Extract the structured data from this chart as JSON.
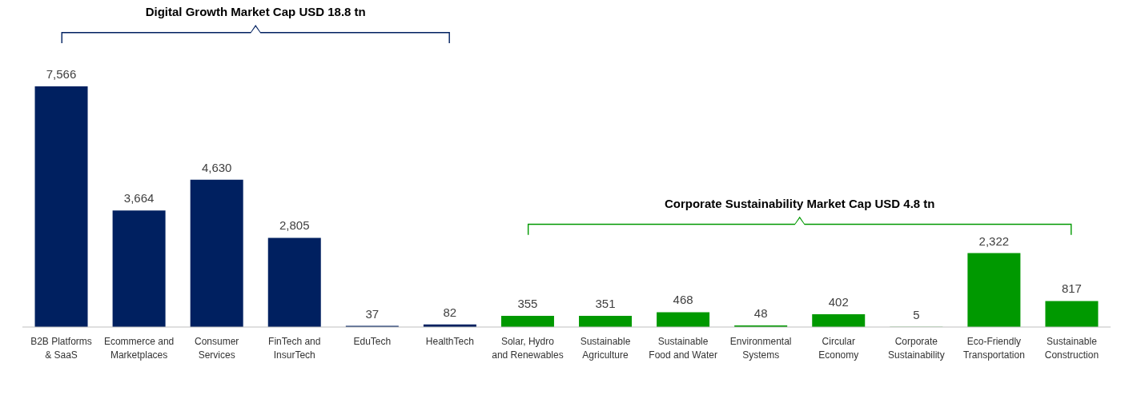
{
  "chart_data": {
    "type": "bar",
    "categories": [
      "B2B Platforms & SaaS",
      "Ecommerce and Marketplaces",
      "Consumer Services",
      "FinTech and InsurTech",
      "EduTech",
      "HealthTech",
      "Solar, Hydro and Renewables",
      "Sustainable Agriculture",
      "Sustainable Food and Water",
      "Environmental Systems",
      "Circular Economy",
      "Corporate Sustainability",
      "Eco-Friendly Transportation",
      "Sustainable Construction"
    ],
    "values": [
      7566,
      3664,
      4630,
      2805,
      37,
      82,
      355,
      351,
      468,
      48,
      402,
      5,
      2322,
      817
    ],
    "colors": [
      "#002060",
      "#002060",
      "#002060",
      "#002060",
      "#002060",
      "#002060",
      "#009900",
      "#009900",
      "#009900",
      "#009900",
      "#009900",
      "#009900",
      "#009900",
      "#009900"
    ],
    "annotations": [
      "Digital Growth Market Cap USD 18.8 tn",
      "Corporate Sustainability Market Cap USD 4.8 tn"
    ],
    "value_labels": [
      "7,566",
      "3,664",
      "4,630",
      "2,805",
      "37",
      "82",
      "355",
      "351",
      "468",
      "48",
      "402",
      "5",
      "2,322",
      "817"
    ]
  }
}
